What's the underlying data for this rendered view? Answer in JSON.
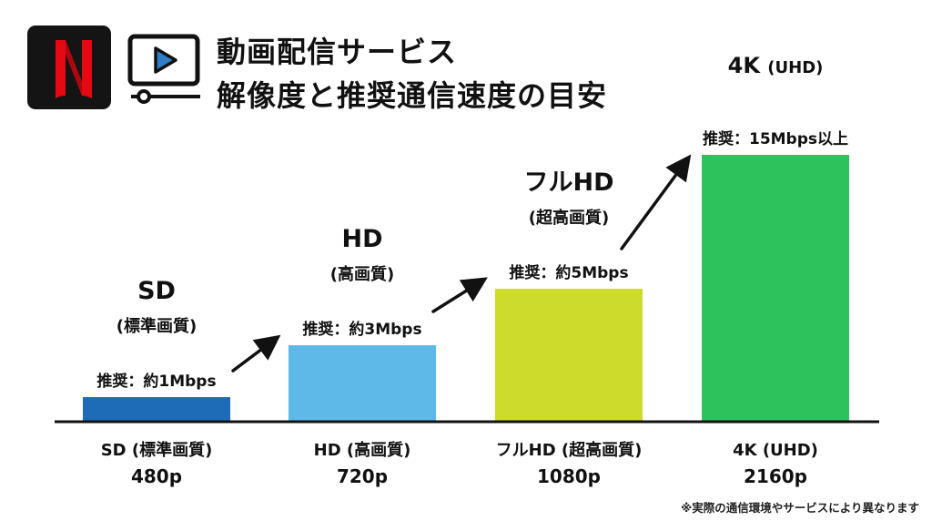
{
  "header": {
    "title_line1": "動画配信サービス",
    "title_line2": "解像度と推奨通信速度の目安",
    "logo_icon": "netflix-logo-icon",
    "video_icon": "video-player-icon",
    "brand_color": "#E50914"
  },
  "footnote": "※実際の通信環境やサービスにより異なります",
  "chart_data": {
    "type": "bar",
    "categories": [
      "SD (標準画質)",
      "HD (高画質)",
      "フルHD (超高画質)",
      "4K (UHD)"
    ],
    "resolutions": [
      "480p",
      "720p",
      "1080p",
      "2160p"
    ],
    "tier_names": [
      "SD",
      "HD",
      "フルHD",
      "4K"
    ],
    "tier_subtitles": [
      "(標準画質)",
      "(高画質)",
      "(超高画質)",
      "(UHD)"
    ],
    "values": [
      1,
      3,
      5,
      15
    ],
    "unit": "Mbps",
    "value_labels": [
      "推奨：約1Mbps",
      "推奨：約3Mbps",
      "推奨：約5Mbps",
      "推奨：15Mbps以上"
    ],
    "colors": [
      "#1E6BB8",
      "#5DB9E8",
      "#CDDC2A",
      "#2EC25C"
    ],
    "xlabel": "",
    "ylabel": "",
    "grid": false,
    "legend": "none"
  }
}
